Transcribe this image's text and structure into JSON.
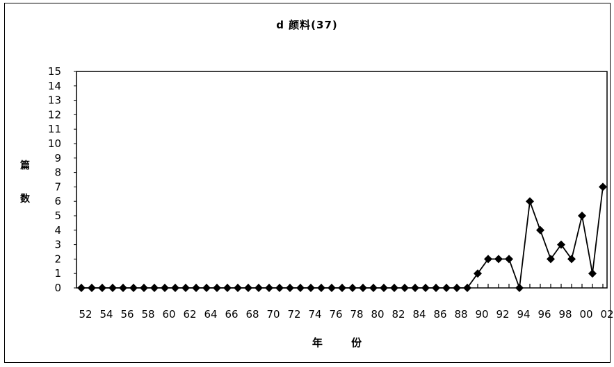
{
  "chart_data": {
    "type": "line",
    "title": "d  颜料(37)",
    "xlabel": "年 份",
    "ylabel": "篇数",
    "x": [
      "52",
      "53",
      "54",
      "55",
      "56",
      "57",
      "58",
      "59",
      "60",
      "61",
      "62",
      "63",
      "64",
      "65",
      "66",
      "67",
      "68",
      "69",
      "70",
      "71",
      "72",
      "73",
      "74",
      "75",
      "76",
      "77",
      "78",
      "79",
      "80",
      "81",
      "82",
      "83",
      "84",
      "85",
      "86",
      "87",
      "88",
      "89",
      "90",
      "91",
      "92",
      "93",
      "94",
      "95",
      "96",
      "97",
      "98",
      "99",
      "00",
      "01",
      "02"
    ],
    "x_tick_labels": [
      "52",
      "54",
      "56",
      "58",
      "60",
      "62",
      "64",
      "66",
      "68",
      "70",
      "72",
      "74",
      "76",
      "78",
      "80",
      "82",
      "84",
      "86",
      "88",
      "90",
      "92",
      "94",
      "96",
      "98",
      "00",
      "02"
    ],
    "series": [
      {
        "values": [
          0,
          0,
          0,
          0,
          0,
          0,
          0,
          0,
          0,
          0,
          0,
          0,
          0,
          0,
          0,
          0,
          0,
          0,
          0,
          0,
          0,
          0,
          0,
          0,
          0,
          0,
          0,
          0,
          0,
          0,
          0,
          0,
          0,
          0,
          0,
          0,
          0,
          0,
          1,
          2,
          2,
          2,
          0,
          6,
          4,
          2,
          3,
          2,
          5,
          1,
          7
        ],
        "color": "#000000",
        "marker": "diamond"
      }
    ],
    "y_tick_labels": [
      "0",
      "1",
      "2",
      "3",
      "4",
      "5",
      "6",
      "7",
      "8",
      "9",
      "10",
      "11",
      "12",
      "13",
      "14",
      "15"
    ],
    "ylim": [
      0,
      15
    ],
    "grid": false,
    "legend": "none"
  }
}
